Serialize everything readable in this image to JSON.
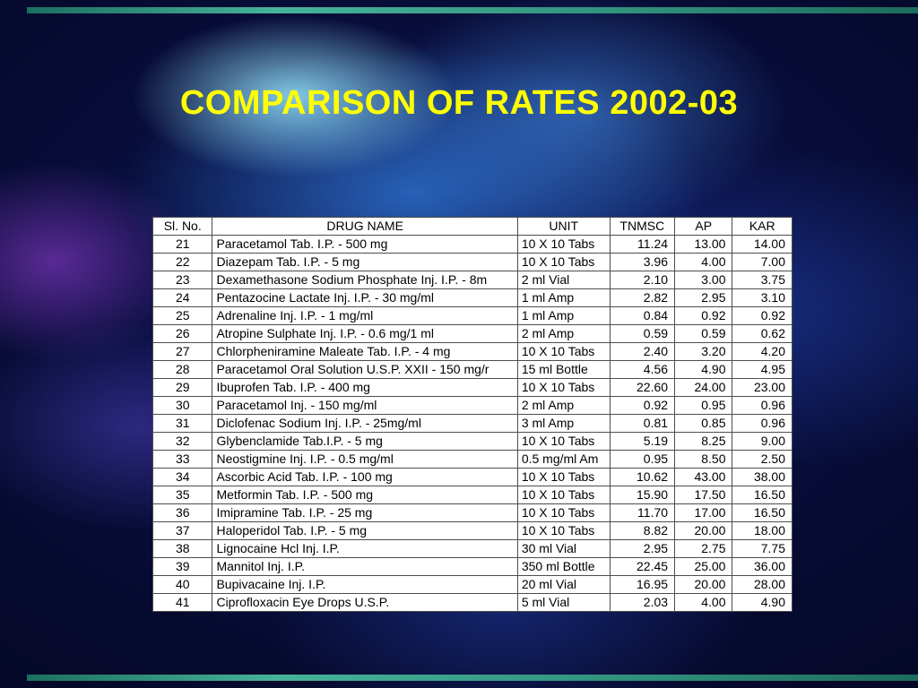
{
  "slide": {
    "title": "COMPARISON OF RATES 2002-03",
    "title_color": "#ffff00",
    "accent_bar_color": "#3fa78f",
    "background_base_color": "#060a2e"
  },
  "table": {
    "columns": [
      "Sl. No.",
      "DRUG NAME",
      "UNIT",
      "TNMSC",
      "AP",
      "KAR"
    ],
    "rows": [
      [
        "21",
        "Paracetamol Tab. I.P. - 500 mg",
        "10 X 10 Tabs",
        "11.24",
        "13.00",
        "14.00"
      ],
      [
        "22",
        "Diazepam Tab. I.P. - 5 mg",
        "10 X 10 Tabs",
        "3.96",
        "4.00",
        "7.00"
      ],
      [
        "23",
        "Dexamethasone Sodium Phosphate Inj. I.P. - 8m",
        "2 ml Vial",
        "2.10",
        "3.00",
        "3.75"
      ],
      [
        "24",
        "Pentazocine Lactate Inj. I.P. - 30 mg/ml",
        "1 ml Amp",
        "2.82",
        "2.95",
        "3.10"
      ],
      [
        "25",
        "Adrenaline Inj. I.P. - 1 mg/ml",
        "1 ml Amp",
        "0.84",
        "0.92",
        "0.92"
      ],
      [
        "26",
        "Atropine Sulphate Inj. I.P. - 0.6 mg/1 ml",
        "2 ml Amp",
        "0.59",
        "0.59",
        "0.62"
      ],
      [
        "27",
        "Chlorpheniramine Maleate Tab. I.P. - 4 mg",
        "10 X 10 Tabs",
        "2.40",
        "3.20",
        "4.20"
      ],
      [
        "28",
        "Paracetamol Oral Solution U.S.P. XXII - 150 mg/r",
        "15 ml Bottle",
        "4.56",
        "4.90",
        "4.95"
      ],
      [
        "29",
        "Ibuprofen Tab. I.P. - 400 mg",
        "10 X 10 Tabs",
        "22.60",
        "24.00",
        "23.00"
      ],
      [
        "30",
        "Paracetamol Inj. - 150 mg/ml",
        "2 ml Amp",
        "0.92",
        "0.95",
        "0.96"
      ],
      [
        "31",
        "Diclofenac Sodium Inj. I.P. - 25mg/ml",
        "3 ml Amp",
        "0.81",
        "0.85",
        "0.96"
      ],
      [
        "32",
        "Glybenclamide Tab.I.P. - 5 mg",
        "10 X 10 Tabs",
        "5.19",
        "8.25",
        "9.00"
      ],
      [
        "33",
        "Neostigmine Inj. I.P. - 0.5 mg/ml",
        "0.5 mg/ml Am",
        "0.95",
        "8.50",
        "2.50"
      ],
      [
        "34",
        "Ascorbic Acid Tab. I.P. - 100 mg",
        "10 X 10 Tabs",
        "10.62",
        "43.00",
        "38.00"
      ],
      [
        "35",
        "Metformin Tab. I.P. - 500 mg",
        "10 X 10 Tabs",
        "15.90",
        "17.50",
        "16.50"
      ],
      [
        "36",
        "Imipramine Tab. I.P. - 25 mg",
        "10 X 10 Tabs",
        "11.70",
        "17.00",
        "16.50"
      ],
      [
        "37",
        "Haloperidol Tab. I.P. - 5 mg",
        "10 X 10 Tabs",
        "8.82",
        "20.00",
        "18.00"
      ],
      [
        "38",
        "Lignocaine Hcl Inj. I.P.",
        "30 ml Vial",
        "2.95",
        "2.75",
        "7.75"
      ],
      [
        "39",
        "Mannitol Inj. I.P.",
        "350 ml Bottle",
        "22.45",
        "25.00",
        "36.00"
      ],
      [
        "40",
        "Bupivacaine Inj. I.P.",
        "20 ml Vial",
        "16.95",
        "20.00",
        "28.00"
      ],
      [
        "41",
        "Ciprofloxacin Eye Drops U.S.P.",
        "5 ml Vial",
        "2.03",
        "4.00",
        "4.90"
      ]
    ]
  }
}
